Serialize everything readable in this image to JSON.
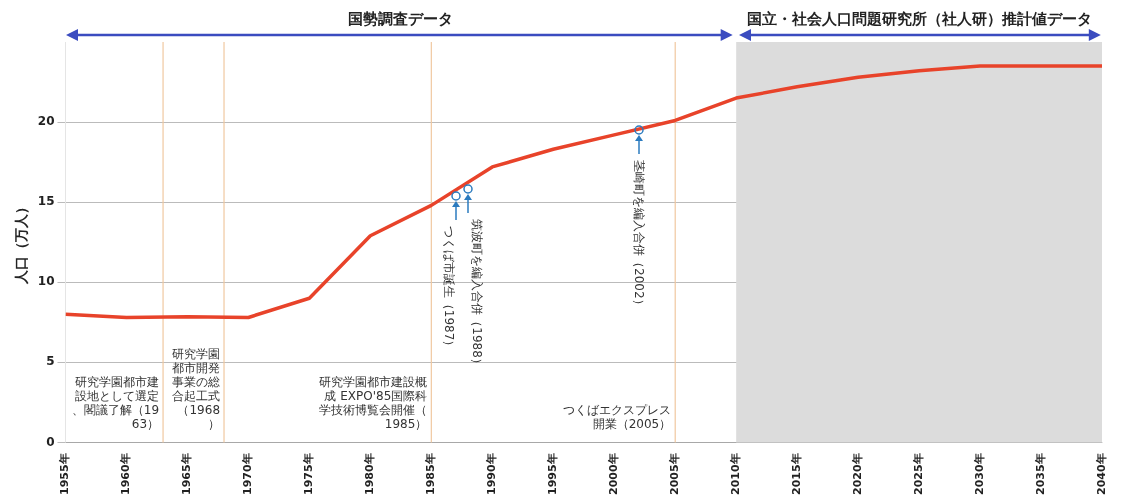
{
  "chart_data": {
    "type": "line",
    "title": "国勢調査データ",
    "ylabel": "人口（万人）",
    "x": [
      1955,
      1960,
      1965,
      1970,
      1975,
      1980,
      1985,
      1990,
      1995,
      2000,
      2005,
      2010,
      2015,
      2020,
      2025,
      2030,
      2035,
      2040
    ],
    "series": [
      {
        "color": "#e8432a",
        "values": [
          8.0,
          7.8,
          7.85,
          7.8,
          9.0,
          12.9,
          14.8,
          17.2,
          18.3,
          19.2,
          20.1,
          21.5,
          22.2,
          22.8,
          23.2,
          23.5,
          23.5,
          23.5
        ]
      }
    ],
    "xlim": [
      1955,
      2040
    ],
    "ylim": [
      0,
      25
    ],
    "xticks": [
      {
        "value": 1955,
        "label": "1955年"
      },
      {
        "value": 1960,
        "label": "1960年"
      },
      {
        "value": 1965,
        "label": "1965年"
      },
      {
        "value": 1970,
        "label": "1970年"
      },
      {
        "value": 1975,
        "label": "1975年"
      },
      {
        "value": 1980,
        "label": "1980年"
      },
      {
        "value": 1985,
        "label": "1985年"
      },
      {
        "value": 1990,
        "label": "1990年"
      },
      {
        "value": 1995,
        "label": "1995年"
      },
      {
        "value": 2000,
        "label": "2000年"
      },
      {
        "value": 2005,
        "label": "2005年"
      },
      {
        "value": 2010,
        "label": "2010年"
      },
      {
        "value": 2015,
        "label": "2015年"
      },
      {
        "value": 2020,
        "label": "2020年"
      },
      {
        "value": 2025,
        "label": "2025年"
      },
      {
        "value": 2030,
        "label": "2030年"
      },
      {
        "value": 2035,
        "label": "2035年"
      },
      {
        "value": 2040,
        "label": "2040年"
      }
    ],
    "yticks": [
      0,
      5,
      10,
      15,
      20
    ],
    "grid": "y",
    "legend": false,
    "marker": "none",
    "line_style": "solid",
    "bands": [
      {
        "axis": "x",
        "from": 2010,
        "to": 2040,
        "label": "国立・社会人口問題研究所（社人研）推計値データ",
        "color": "#dcdcdc"
      }
    ],
    "ref_lines": [
      {
        "axis": "x",
        "value": 1963,
        "color": "#f0c8a0",
        "label": "研究学園都市建設地として選定、閣議了解（1963）"
      },
      {
        "axis": "x",
        "value": 1968,
        "color": "#f0c8a0",
        "label": "研究学園都市開発事業の総合起工式（1968）"
      },
      {
        "axis": "x",
        "value": 1985,
        "color": "#f0c8a0",
        "label": "研究学園都市建設概成 EXPO'85国際科学技術博覧会開催（1985）"
      },
      {
        "axis": "x",
        "value": 2005,
        "color": "#f0c8a0",
        "label": "つくばエクスプレス開業（2005）"
      }
    ],
    "annotations": [
      {
        "text": "つくば市誕生（1987）",
        "x": 1987,
        "y": 15.4
      },
      {
        "text": "筑波町を編入合併（1988）",
        "x": 1988,
        "y": 15.8
      },
      {
        "text": "茎崎町を編入合併（2002）",
        "x": 2002,
        "y": 19.5
      }
    ]
  }
}
